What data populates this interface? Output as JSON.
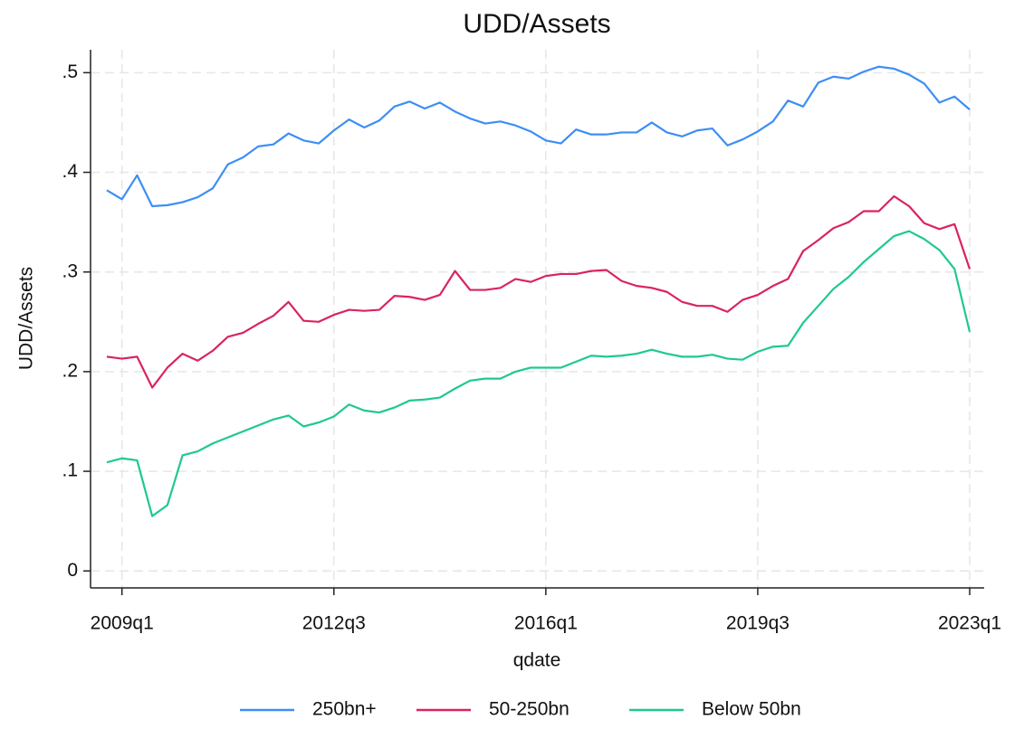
{
  "chart_data": {
    "type": "line",
    "title": "UDD/Assets",
    "x_label": "qdate",
    "y_label": "UDD/Assets",
    "x": [
      "2008q4",
      "2009q1",
      "2009q2",
      "2009q3",
      "2009q4",
      "2010q1",
      "2010q2",
      "2010q3",
      "2010q4",
      "2011q1",
      "2011q2",
      "2011q3",
      "2011q4",
      "2012q1",
      "2012q2",
      "2012q3",
      "2012q4",
      "2013q1",
      "2013q2",
      "2013q3",
      "2013q4",
      "2014q1",
      "2014q2",
      "2014q3",
      "2014q4",
      "2015q1",
      "2015q2",
      "2015q3",
      "2015q4",
      "2016q1",
      "2016q2",
      "2016q3",
      "2016q4",
      "2017q1",
      "2017q2",
      "2017q3",
      "2017q4",
      "2018q1",
      "2018q2",
      "2018q3",
      "2018q4",
      "2019q1",
      "2019q2",
      "2019q3",
      "2019q4",
      "2020q1",
      "2020q2",
      "2020q3",
      "2020q4",
      "2021q1",
      "2021q2",
      "2021q3",
      "2021q4",
      "2022q1",
      "2022q2",
      "2022q3",
      "2022q4",
      "2023q1"
    ],
    "xticks": [
      "2009q1",
      "2012q3",
      "2016q1",
      "2019q3",
      "2023q1"
    ],
    "series": [
      {
        "name": "250bn+",
        "color": "#3d8ef5",
        "values": [
          0.382,
          0.373,
          0.397,
          0.366,
          0.367,
          0.37,
          0.375,
          0.384,
          0.408,
          0.415,
          0.426,
          0.428,
          0.439,
          0.432,
          0.429,
          0.442,
          0.453,
          0.445,
          0.452,
          0.466,
          0.471,
          0.464,
          0.47,
          0.461,
          0.454,
          0.449,
          0.451,
          0.447,
          0.441,
          0.432,
          0.429,
          0.443,
          0.438,
          0.438,
          0.44,
          0.44,
          0.45,
          0.44,
          0.436,
          0.442,
          0.444,
          0.427,
          0.433,
          0.441,
          0.451,
          0.472,
          0.466,
          0.49,
          0.496,
          0.494,
          0.501,
          0.506,
          0.504,
          0.498,
          0.489,
          0.47,
          0.476,
          0.463
        ]
      },
      {
        "name": "50-250bn",
        "color": "#d9245f",
        "values": [
          0.215,
          0.213,
          0.215,
          0.184,
          0.204,
          0.218,
          0.211,
          0.221,
          0.235,
          0.239,
          0.248,
          0.256,
          0.27,
          0.251,
          0.25,
          0.257,
          0.262,
          0.261,
          0.262,
          0.276,
          0.275,
          0.272,
          0.277,
          0.301,
          0.282,
          0.282,
          0.284,
          0.293,
          0.29,
          0.296,
          0.298,
          0.298,
          0.301,
          0.302,
          0.291,
          0.286,
          0.284,
          0.28,
          0.27,
          0.266,
          0.266,
          0.26,
          0.272,
          0.277,
          0.286,
          0.293,
          0.321,
          0.332,
          0.344,
          0.35,
          0.361,
          0.361,
          0.376,
          0.366,
          0.349,
          0.343,
          0.348,
          0.303
        ]
      },
      {
        "name": "Below 50bn",
        "color": "#1fc98c",
        "values": [
          0.109,
          0.113,
          0.111,
          0.055,
          0.066,
          0.116,
          0.12,
          0.128,
          0.134,
          0.14,
          0.146,
          0.152,
          0.156,
          0.145,
          0.149,
          0.155,
          0.167,
          0.161,
          0.159,
          0.164,
          0.171,
          0.172,
          0.174,
          0.183,
          0.191,
          0.193,
          0.193,
          0.2,
          0.204,
          0.204,
          0.204,
          0.21,
          0.216,
          0.215,
          0.216,
          0.218,
          0.222,
          0.218,
          0.215,
          0.215,
          0.217,
          0.213,
          0.212,
          0.22,
          0.225,
          0.226,
          0.249,
          0.266,
          0.283,
          0.295,
          0.31,
          0.323,
          0.336,
          0.341,
          0.333,
          0.322,
          0.303,
          0.24
        ]
      }
    ],
    "ylim": [
      -0.017,
      0.523
    ],
    "yticks": [
      0,
      {
        "value": 0.1,
        "label": ".1"
      },
      {
        "value": 0.2,
        "label": ".2"
      },
      {
        "value": 0.3,
        "label": ".3"
      },
      {
        "value": 0.4,
        "label": ".4"
      },
      {
        "value": 0.5,
        "label": ".5"
      }
    ],
    "grid": true,
    "legend": "bottom"
  }
}
